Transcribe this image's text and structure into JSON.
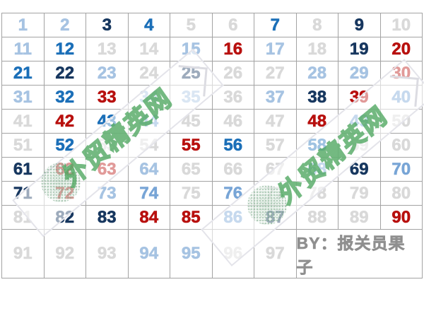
{
  "colors": {
    "gray": "#d9d9d9",
    "pale": "#a6c3e2",
    "mid": "#78a5d6",
    "blue": "#1b6fb8",
    "navy": "#17375f",
    "red": "#b8100e",
    "byline": "#8f8f8f",
    "line": "#a3a3a3",
    "wm_green": "#4aa45c",
    "stamp_green": "#7ea98c"
  },
  "watermark": {
    "text": "外贸精英网",
    "occurrences": 2
  },
  "byline": "BY：报关员果子",
  "chart_data": {
    "type": "table",
    "rows": 10,
    "cols": 10,
    "description": "Number grid 1-97; color class per number; cells 98-100 merged into byline",
    "cells": [
      {
        "t": "1",
        "c": "pale"
      },
      {
        "t": "2",
        "c": "pale"
      },
      {
        "t": "3",
        "c": "navy"
      },
      {
        "t": "4",
        "c": "blue"
      },
      {
        "t": "5",
        "c": "gray"
      },
      {
        "t": "6",
        "c": "gray"
      },
      {
        "t": "7",
        "c": "blue"
      },
      {
        "t": "8",
        "c": "gray"
      },
      {
        "t": "9",
        "c": "navy"
      },
      {
        "t": "10",
        "c": "gray"
      },
      {
        "t": "11",
        "c": "pale"
      },
      {
        "t": "12",
        "c": "blue"
      },
      {
        "t": "13",
        "c": "gray"
      },
      {
        "t": "14",
        "c": "gray"
      },
      {
        "t": "15",
        "c": "pale"
      },
      {
        "t": "16",
        "c": "red"
      },
      {
        "t": "17",
        "c": "pale"
      },
      {
        "t": "18",
        "c": "gray"
      },
      {
        "t": "19",
        "c": "navy"
      },
      {
        "t": "20",
        "c": "red"
      },
      {
        "t": "21",
        "c": "blue"
      },
      {
        "t": "22",
        "c": "navy"
      },
      {
        "t": "23",
        "c": "pale"
      },
      {
        "t": "24",
        "c": "gray"
      },
      {
        "t": "25",
        "c": "navy"
      },
      {
        "t": "26",
        "c": "gray"
      },
      {
        "t": "27",
        "c": "gray"
      },
      {
        "t": "28",
        "c": "pale"
      },
      {
        "t": "29",
        "c": "pale"
      },
      {
        "t": "30",
        "c": "red"
      },
      {
        "t": "31",
        "c": "pale"
      },
      {
        "t": "32",
        "c": "blue"
      },
      {
        "t": "33",
        "c": "red"
      },
      {
        "t": "34",
        "c": "pale"
      },
      {
        "t": "35",
        "c": "pale"
      },
      {
        "t": "36",
        "c": "gray"
      },
      {
        "t": "37",
        "c": "pale"
      },
      {
        "t": "38",
        "c": "navy"
      },
      {
        "t": "39",
        "c": "red"
      },
      {
        "t": "40",
        "c": "mid"
      },
      {
        "t": "41",
        "c": "gray"
      },
      {
        "t": "42",
        "c": "red"
      },
      {
        "t": "43",
        "c": "blue"
      },
      {
        "t": "44",
        "c": "mid"
      },
      {
        "t": "45",
        "c": "gray"
      },
      {
        "t": "46",
        "c": "gray"
      },
      {
        "t": "47",
        "c": "gray"
      },
      {
        "t": "48",
        "c": "red"
      },
      {
        "t": "49",
        "c": "mid"
      },
      {
        "t": "50",
        "c": "gray"
      },
      {
        "t": "51",
        "c": "gray"
      },
      {
        "t": "52",
        "c": "blue"
      },
      {
        "t": "53",
        "c": "gray"
      },
      {
        "t": "54",
        "c": "gray"
      },
      {
        "t": "55",
        "c": "red"
      },
      {
        "t": "56",
        "c": "blue"
      },
      {
        "t": "57",
        "c": "gray"
      },
      {
        "t": "58",
        "c": "blue"
      },
      {
        "t": "59",
        "c": "gray"
      },
      {
        "t": "60",
        "c": "gray"
      },
      {
        "t": "61",
        "c": "navy"
      },
      {
        "t": "62",
        "c": "red"
      },
      {
        "t": "63",
        "c": "red"
      },
      {
        "t": "64",
        "c": "pale"
      },
      {
        "t": "65",
        "c": "gray"
      },
      {
        "t": "66",
        "c": "gray"
      },
      {
        "t": "67",
        "c": "gray"
      },
      {
        "t": "68",
        "c": "mid"
      },
      {
        "t": "69",
        "c": "navy"
      },
      {
        "t": "70",
        "c": "mid"
      },
      {
        "t": "71",
        "c": "navy"
      },
      {
        "t": "72",
        "c": "red"
      },
      {
        "t": "73",
        "c": "pale"
      },
      {
        "t": "74",
        "c": "mid"
      },
      {
        "t": "75",
        "c": "gray"
      },
      {
        "t": "76",
        "c": "mid"
      },
      {
        "t": "77",
        "c": "gray"
      },
      {
        "t": "78",
        "c": "gray"
      },
      {
        "t": "79",
        "c": "gray"
      },
      {
        "t": "80",
        "c": "gray"
      },
      {
        "t": "81",
        "c": "gray"
      },
      {
        "t": "82",
        "c": "navy"
      },
      {
        "t": "83",
        "c": "navy"
      },
      {
        "t": "84",
        "c": "red"
      },
      {
        "t": "85",
        "c": "red"
      },
      {
        "t": "86",
        "c": "mid"
      },
      {
        "t": "87",
        "c": "navy"
      },
      {
        "t": "88",
        "c": "gray"
      },
      {
        "t": "89",
        "c": "gray"
      },
      {
        "t": "90",
        "c": "red"
      },
      {
        "t": "91",
        "c": "gray"
      },
      {
        "t": "92",
        "c": "gray"
      },
      {
        "t": "93",
        "c": "gray"
      },
      {
        "t": "94",
        "c": "pale"
      },
      {
        "t": "95",
        "c": "pale"
      },
      {
        "t": "96",
        "c": "gray"
      },
      {
        "t": "97",
        "c": "gray"
      },
      {
        "t": "BY：报关员果子",
        "c": "byline",
        "span": 3
      }
    ]
  }
}
